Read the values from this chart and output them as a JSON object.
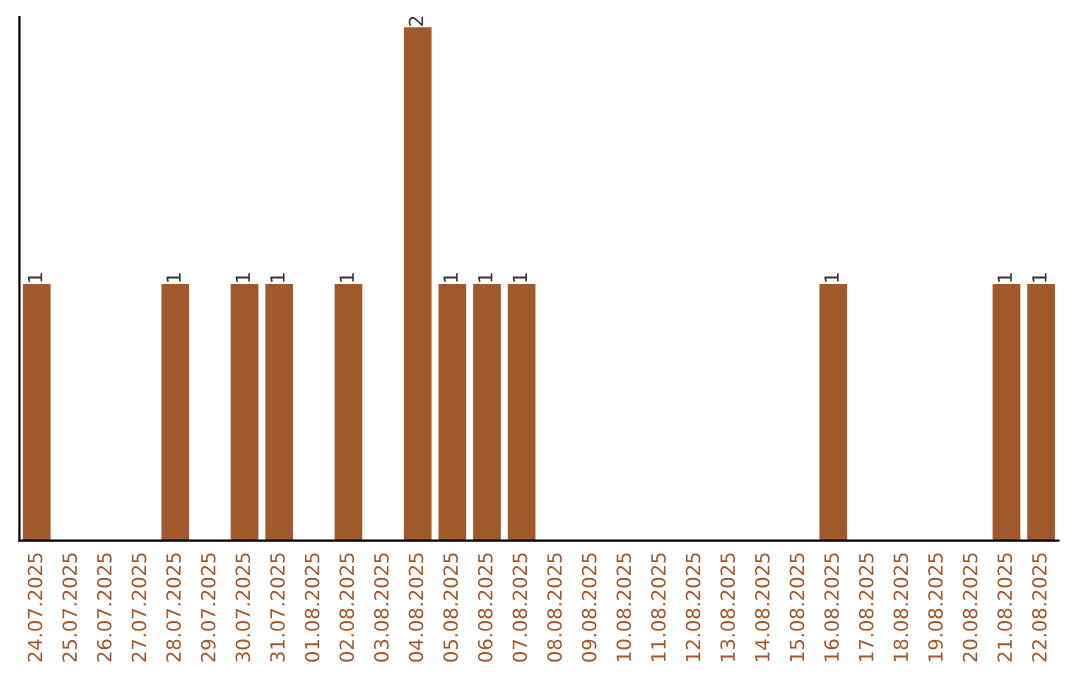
{
  "chart_data": {
    "type": "bar",
    "categories": [
      "24.07.2025",
      "25.07.2025",
      "26.07.2025",
      "27.07.2025",
      "28.07.2025",
      "29.07.2025",
      "30.07.2025",
      "31.07.2025",
      "01.08.2025",
      "02.08.2025",
      "03.08.2025",
      "04.08.2025",
      "05.08.2025",
      "06.08.2025",
      "07.08.2025",
      "08.08.2025",
      "09.08.2025",
      "10.08.2025",
      "11.08.2025",
      "12.08.2025",
      "13.08.2025",
      "14.08.2025",
      "15.08.2025",
      "16.08.2025",
      "17.08.2025",
      "18.08.2025",
      "19.08.2025",
      "20.08.2025",
      "21.08.2025",
      "22.08.2025"
    ],
    "values": [
      1,
      0,
      0,
      0,
      1,
      0,
      1,
      1,
      0,
      1,
      0,
      2,
      1,
      1,
      1,
      0,
      0,
      0,
      0,
      0,
      0,
      0,
      0,
      1,
      0,
      0,
      0,
      0,
      1,
      1
    ],
    "value_labels": [
      "1",
      null,
      null,
      null,
      "1",
      null,
      "1",
      "1",
      null,
      "1",
      null,
      "2",
      "1",
      "1",
      "1",
      null,
      null,
      null,
      null,
      null,
      null,
      null,
      null,
      "1",
      null,
      null,
      null,
      null,
      "1",
      "1"
    ],
    "color": "#a0592a",
    "grid": false,
    "legend": false,
    "tick_labels": "x"
  }
}
